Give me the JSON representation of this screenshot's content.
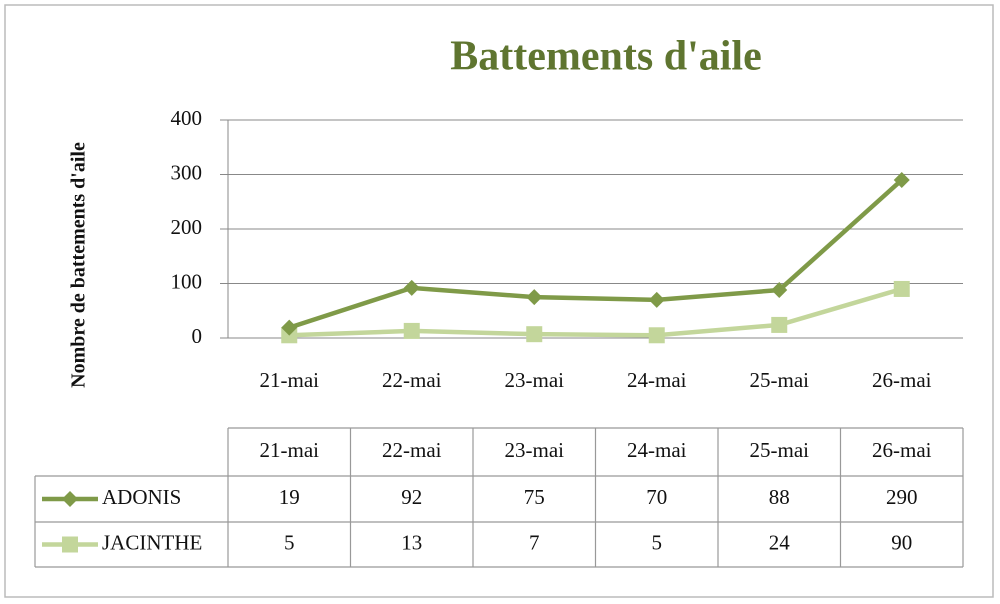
{
  "chart_data": {
    "type": "line",
    "title": "Battements d'aile",
    "y_label": "Nombre de battements d'aile",
    "categories": [
      "21-mai",
      "22-mai",
      "23-mai",
      "24-mai",
      "25-mai",
      "26-mai"
    ],
    "series": [
      {
        "name": "ADONIS",
        "color": "#7f9a48",
        "marker": "diamond",
        "values": [
          19,
          92,
          75,
          70,
          88,
          290
        ]
      },
      {
        "name": "JACINTHE",
        "color": "#c3d69b",
        "marker": "square",
        "values": [
          5,
          13,
          7,
          5,
          24,
          90
        ]
      }
    ],
    "ylim": [
      0,
      400
    ],
    "yticks": [
      0,
      100,
      200,
      300,
      400
    ],
    "grid": true,
    "data_table": true
  }
}
